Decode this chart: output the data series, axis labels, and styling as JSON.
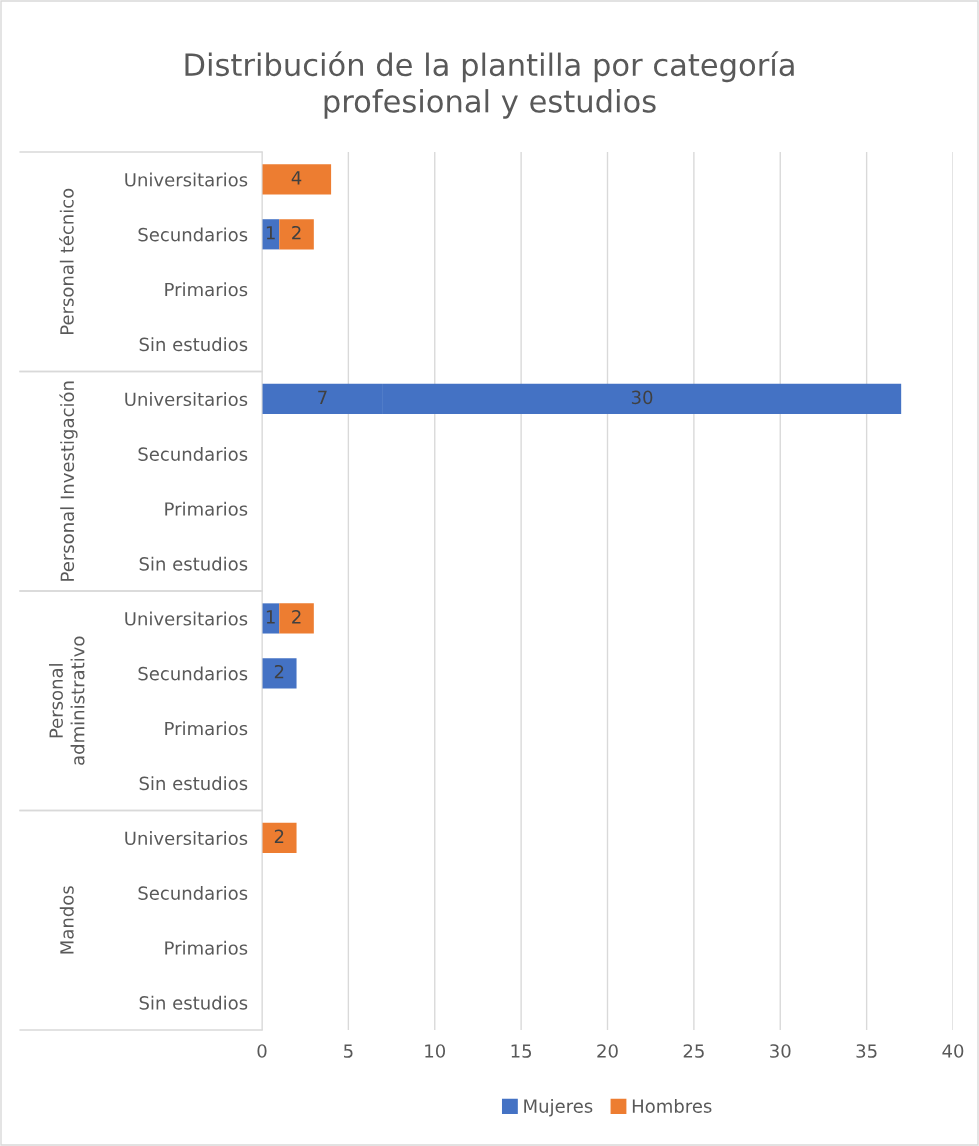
{
  "chart_data": {
    "type": "bar",
    "orientation": "horizontal",
    "stacked": true,
    "title": "Distribución de la plantilla por categoría\nprofesional y estudios",
    "categories": [
      "Universitarios",
      "Secundarios",
      "Primarios",
      "Sin estudios",
      "Universitarios",
      "Secundarios",
      "Primarios",
      "Sin estudios",
      "Universitarios",
      "Secundarios",
      "Primarios",
      "Sin estudios",
      "Universitarios",
      "Secundarios",
      "Primarios",
      "Sin estudios"
    ],
    "annotations": [
      "Personal técnico",
      "Personal Investigación",
      "Personal\nadministrativo",
      "Mandos"
    ],
    "series": [
      {
        "name": "Mujeres",
        "color": "#4472c4",
        "values": [
          null,
          1,
          null,
          null,
          7,
          null,
          null,
          null,
          1,
          2,
          null,
          null,
          null,
          null,
          null,
          null
        ]
      },
      {
        "name": "Hombres",
        "color": "#ed7d31",
        "colors": [
          "#ed7d31",
          "#ed7d31",
          "#ed7d31",
          "#ed7d31",
          "#4472c4",
          "#ed7d31",
          "#ed7d31",
          "#ed7d31",
          "#ed7d31",
          "#ed7d31",
          "#ed7d31",
          "#ed7d31",
          "#ed7d31",
          "#ed7d31",
          "#ed7d31",
          "#ed7d31"
        ],
        "values": [
          4,
          2,
          null,
          null,
          30,
          null,
          null,
          null,
          2,
          null,
          null,
          null,
          2,
          null,
          null,
          null
        ]
      }
    ],
    "xlim": [
      0,
      40
    ],
    "xticks": [
      0,
      5,
      10,
      15,
      20,
      25,
      30,
      35,
      40
    ],
    "grid": "x",
    "legend": "bottom",
    "data_labels": true
  }
}
